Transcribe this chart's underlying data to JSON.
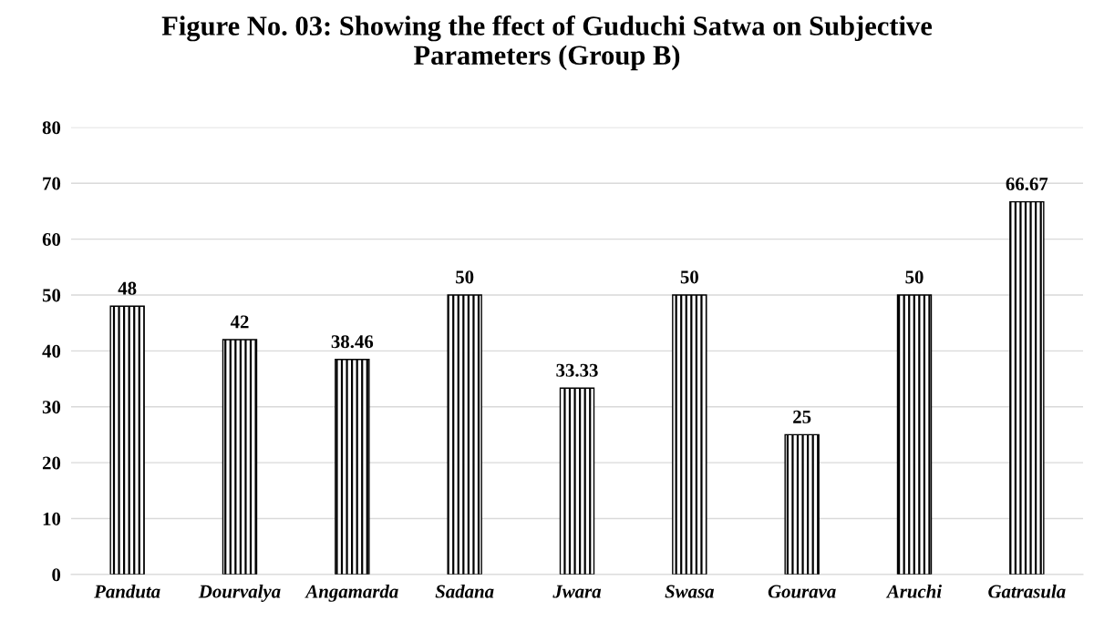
{
  "chart_data": {
    "type": "bar",
    "title": "Figure No. 03: Showing the ffect of Guduchi Satwa on Subjective\nParameters (Group B)",
    "categories": [
      "Panduta",
      "Dourvalya",
      "Angamarda",
      "Sadana",
      "Jwara",
      "Swasa",
      "Gourava",
      "Aruchi",
      "Gatrasula"
    ],
    "values": [
      48,
      42,
      38.46,
      50,
      33.33,
      50,
      25,
      50,
      66.67
    ],
    "color": "#000000",
    "ylim": [
      0,
      80
    ],
    "yticks": [
      0,
      10,
      20,
      30,
      40,
      50,
      60,
      70,
      80
    ],
    "grid": "y",
    "data_labels": true
  }
}
